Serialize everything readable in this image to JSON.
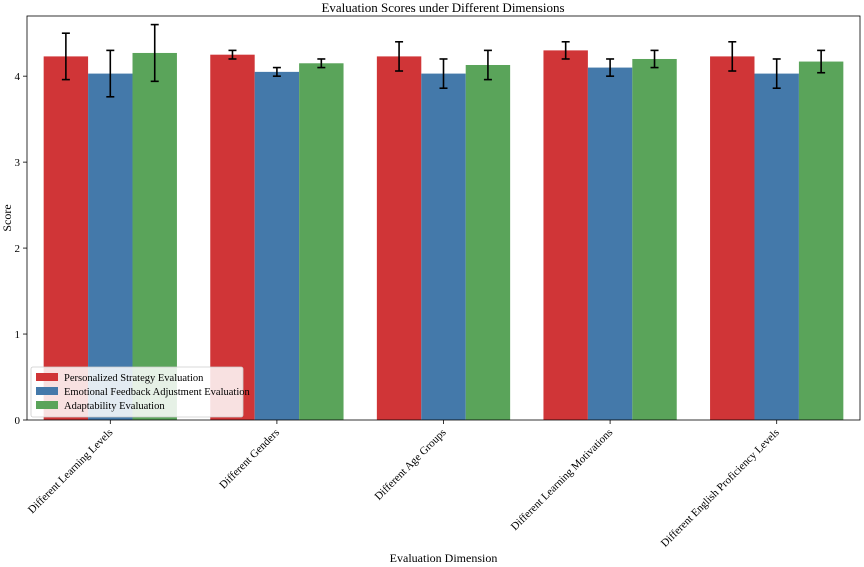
{
  "chart_data": {
    "type": "bar",
    "title": "Evaluation Scores under Different Dimensions",
    "xlabel": "Evaluation Dimension",
    "ylabel": "Score",
    "ylim": [
      0,
      4.7
    ],
    "yticks": [
      0,
      1,
      2,
      3,
      4
    ],
    "categories": [
      "Different Learning Levels",
      "Different Genders",
      "Different Age Groups",
      "Different Learning Motivations",
      "Different English Proficiency Levels"
    ],
    "series": [
      {
        "name": "Personalized Strategy Evaluation",
        "color": "#d03537",
        "values": [
          4.23,
          4.25,
          4.23,
          4.3,
          4.23
        ],
        "errors": [
          0.27,
          0.05,
          0.17,
          0.1,
          0.17
        ]
      },
      {
        "name": "Emotional Feedback Adjustment Evaluation",
        "color": "#4479aa",
        "values": [
          4.03,
          4.05,
          4.03,
          4.1,
          4.03
        ],
        "errors": [
          0.27,
          0.05,
          0.17,
          0.1,
          0.17
        ]
      },
      {
        "name": "Adaptability Evaluation",
        "color": "#5aa45a",
        "values": [
          4.27,
          4.15,
          4.13,
          4.2,
          4.17
        ],
        "errors": [
          0.33,
          0.05,
          0.17,
          0.1,
          0.13
        ]
      }
    ],
    "grid": false,
    "legend_position": "bottom-left"
  }
}
